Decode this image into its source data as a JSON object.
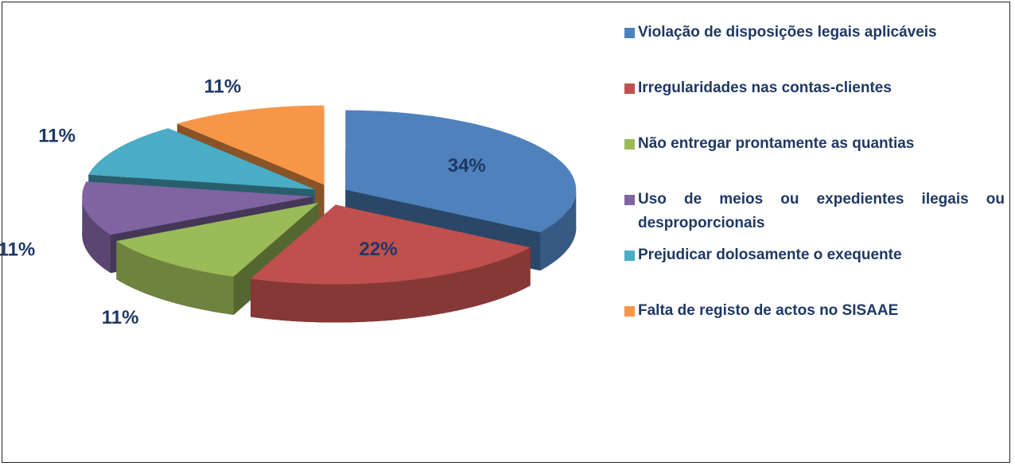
{
  "chart_data": {
    "type": "pie",
    "categories": [
      "Violação de disposições legais aplicáveis",
      "Irregularidades nas contas-clientes",
      "Não entregar prontamente as quantias",
      "Uso de meios ou expedientes ilegais ou desproporcionais",
      "Prejudicar dolosamente o exequente",
      "Falta de registo de actos no SISAAE"
    ],
    "values": [
      34,
      22,
      11,
      11,
      11,
      11
    ],
    "value_labels": [
      "34%",
      "22%",
      "11%",
      "11%",
      "11%",
      "11%"
    ],
    "colors": [
      "#4f81bd",
      "#c0504d",
      "#9bbb59",
      "#8064a2",
      "#4bacc6",
      "#f79646"
    ],
    "legend": "right"
  }
}
